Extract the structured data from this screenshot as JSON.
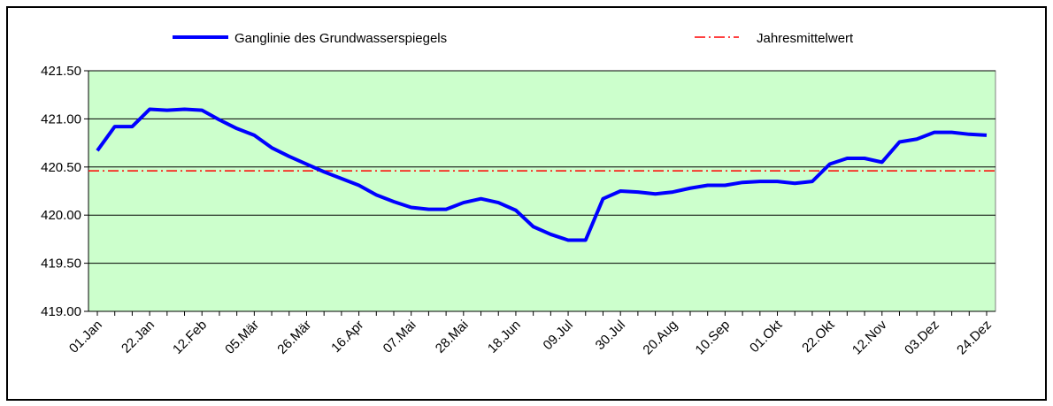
{
  "chart_data": {
    "type": "line",
    "categories": [
      "01.Jan",
      null,
      null,
      "22.Jan",
      null,
      null,
      "12.Feb",
      null,
      null,
      "05.Mär",
      null,
      null,
      "26.Mär",
      null,
      null,
      "16.Apr",
      null,
      null,
      "07.Mai",
      null,
      null,
      "28.Mai",
      null,
      null,
      "18.Jun",
      null,
      null,
      "09.Jul",
      null,
      null,
      "30.Jul",
      null,
      null,
      "20.Aug",
      null,
      null,
      "10.Sep",
      null,
      null,
      "01.Okt",
      null,
      null,
      "22.Okt",
      null,
      null,
      "12.Nov",
      null,
      null,
      "03.Dez",
      null,
      null,
      "24.Dez"
    ],
    "series": [
      {
        "name": "Ganglinie des Grundwasserspiegels",
        "color": "#0000ff",
        "values": [
          420.67,
          420.92,
          420.92,
          421.1,
          421.09,
          421.1,
          421.09,
          420.99,
          420.9,
          420.83,
          420.7,
          420.61,
          420.53,
          420.45,
          420.38,
          420.31,
          420.21,
          420.14,
          420.08,
          420.06,
          420.06,
          420.13,
          420.17,
          420.13,
          420.05,
          419.88,
          419.8,
          419.74,
          419.74,
          420.17,
          420.25,
          420.24,
          420.22,
          420.24,
          420.28,
          420.31,
          420.31,
          420.34,
          420.35,
          420.35,
          420.33,
          420.35,
          420.53,
          420.59,
          420.59,
          420.55,
          420.76,
          420.79,
          420.86,
          420.86,
          420.84,
          420.83
        ]
      }
    ],
    "reference_lines": [
      {
        "name": "Jahresmittelwert",
        "value": 420.46,
        "color": "#ff0000"
      }
    ],
    "ylim": [
      419.0,
      421.5
    ],
    "yticks": [
      {
        "value": 419.0,
        "label": "419.00"
      },
      {
        "value": 419.5,
        "label": "419.50"
      },
      {
        "value": 420.0,
        "label": "420.00"
      },
      {
        "value": 420.5,
        "label": "420.50"
      },
      {
        "value": 421.0,
        "label": "421.00"
      },
      {
        "value": 421.5,
        "label": "421.50"
      }
    ],
    "grid": true,
    "background": "#ccffcc",
    "legend": "top"
  }
}
